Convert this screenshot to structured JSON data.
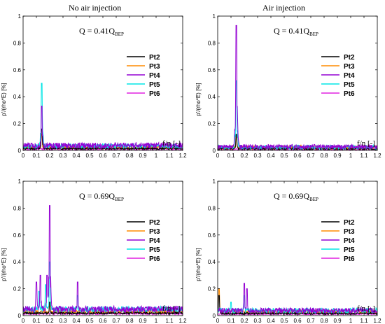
{
  "column_titles": [
    "No air injection",
    "Air injection"
  ],
  "legend_entries": [
    "Pt2",
    "Pt3",
    "Pt4",
    "Pt5",
    "Pt6"
  ],
  "chart_data": [
    {
      "type": "line",
      "panel": "top-left",
      "annotation": {
        "text": "Q = 0.41Q",
        "sub": "BEP"
      },
      "xlabel": "f/n [-]",
      "ylabel": "p'/(rho*E) [%]",
      "xlim": [
        0,
        1.2
      ],
      "ylim": [
        0,
        1.0
      ],
      "xticks": [
        "0",
        "0.1",
        "0.2",
        "0.3",
        "0.4",
        "0.5",
        "0.6",
        "0.7",
        "0.8",
        "0.9",
        "1",
        "1.1",
        "1.2"
      ],
      "yticks": [
        "0",
        "0.2",
        "0.4",
        "0.6",
        "0.8",
        "1"
      ],
      "legend": "right",
      "baseline": 0.03,
      "series": [
        {
          "name": "Pt2",
          "color": "#000000",
          "peaks": [
            [
              0.14,
              0.16
            ]
          ],
          "noise": 0.015,
          "amp": 0.4
        },
        {
          "name": "Pt3",
          "color": "#ff8c00",
          "peaks": [
            [
              0.14,
              0.12
            ]
          ],
          "noise": 0.025,
          "amp": 0.6
        },
        {
          "name": "Pt4",
          "color": "#9400d3",
          "peaks": [
            [
              0.14,
              0.33
            ]
          ],
          "noise": 0.045,
          "amp": 1.0
        },
        {
          "name": "Pt5",
          "color": "#00e5e5",
          "peaks": [
            [
              0.14,
              0.5
            ]
          ],
          "noise": 0.035,
          "amp": 0.9
        },
        {
          "name": "Pt6",
          "color": "#e020e0",
          "peaks": [],
          "noise": 0.012,
          "amp": 0.3
        }
      ]
    },
    {
      "type": "line",
      "panel": "top-right",
      "annotation": {
        "text": "Q = 0.41Q",
        "sub": "BEP"
      },
      "xlabel": "f/n [-]",
      "ylabel": "p'/(rho*E) [%]",
      "xlim": [
        0,
        1.2
      ],
      "ylim": [
        0,
        1.0
      ],
      "xticks": [
        "0",
        "0.1",
        "0.2",
        "0.3",
        "0.4",
        "0.5",
        "0.6",
        "0.7",
        "0.8",
        "0.9",
        "1",
        "1.1",
        "1.2"
      ],
      "yticks": [
        "0",
        "0.2",
        "0.4",
        "0.6",
        "0.8",
        "1"
      ],
      "legend": "right",
      "baseline": 0.025,
      "series": [
        {
          "name": "Pt2",
          "color": "#000000",
          "peaks": [
            [
              0.14,
              0.12
            ]
          ],
          "noise": 0.012,
          "amp": 0.4
        },
        {
          "name": "Pt3",
          "color": "#ff8c00",
          "peaks": [
            [
              0.14,
              0.1
            ]
          ],
          "noise": 0.03,
          "amp": 0.7
        },
        {
          "name": "Pt4",
          "color": "#9400d3",
          "peaks": [
            [
              0.14,
              0.93
            ]
          ],
          "noise": 0.035,
          "amp": 0.9
        },
        {
          "name": "Pt5",
          "color": "#00e5e5",
          "peaks": [
            [
              0.14,
              0.52
            ]
          ],
          "noise": 0.03,
          "amp": 0.8
        },
        {
          "name": "Pt6",
          "color": "#e020e0",
          "peaks": [],
          "noise": 0.01,
          "amp": 0.3
        }
      ]
    },
    {
      "type": "line",
      "panel": "bottom-left",
      "annotation": {
        "text": "Q = 0.69Q",
        "sub": "BEP"
      },
      "xlabel": "f/n [-]",
      "ylabel": "p'/(rho*E) [%]",
      "xlim": [
        0,
        1.2
      ],
      "ylim": [
        0,
        1.0
      ],
      "xticks": [
        "0",
        "0.1",
        "0.2",
        "0.3",
        "0.4",
        "0.5",
        "0.6",
        "0.7",
        "0.8",
        "0.9",
        "1",
        "1.1",
        "1.2"
      ],
      "yticks": [
        "0",
        "0.2",
        "0.4",
        "0.6",
        "0.8",
        "1"
      ],
      "legend": "right",
      "baseline": 0.04,
      "series": [
        {
          "name": "Pt2",
          "color": "#000000",
          "peaks": [
            [
              0.2,
              0.1
            ]
          ],
          "noise": 0.015,
          "amp": 0.4
        },
        {
          "name": "Pt3",
          "color": "#ff8c00",
          "peaks": [
            [
              0.2,
              0.1
            ]
          ],
          "noise": 0.025,
          "amp": 0.6
        },
        {
          "name": "Pt4",
          "color": "#9400d3",
          "peaks": [
            [
              0.1,
              0.25
            ],
            [
              0.13,
              0.3
            ],
            [
              0.18,
              0.3
            ],
            [
              0.2,
              0.82
            ],
            [
              0.41,
              0.25
            ]
          ],
          "noise": 0.05,
          "amp": 1.0
        },
        {
          "name": "Pt5",
          "color": "#00e5e5",
          "peaks": [
            [
              0.12,
              0.18
            ],
            [
              0.17,
              0.23
            ],
            [
              0.2,
              0.4
            ],
            [
              0.41,
              0.15
            ]
          ],
          "noise": 0.045,
          "amp": 1.0
        },
        {
          "name": "Pt6",
          "color": "#e020e0",
          "peaks": [],
          "noise": 0.012,
          "amp": 0.3
        }
      ]
    },
    {
      "type": "line",
      "panel": "bottom-right",
      "annotation": {
        "text": "Q = 0.69Q",
        "sub": "BEP"
      },
      "xlabel": "f/n [-]",
      "ylabel": "p'/(rho*E) [%]",
      "xlim": [
        0,
        1.2
      ],
      "ylim": [
        0,
        1.0
      ],
      "xticks": [
        "0",
        "0.1",
        "0.2",
        "0.3",
        "0.4",
        "0.5",
        "0.6",
        "0.7",
        "0.8",
        "0.9",
        "1",
        "1.1",
        "1.2"
      ],
      "yticks": [
        "0",
        "0.2",
        "0.4",
        "0.6",
        "0.8",
        "1"
      ],
      "legend": "right",
      "baseline": 0.035,
      "series": [
        {
          "name": "Pt2",
          "color": "#000000",
          "peaks": [
            [
              0.01,
              0.15
            ]
          ],
          "noise": 0.015,
          "amp": 0.4
        },
        {
          "name": "Pt3",
          "color": "#ff8c00",
          "peaks": [
            [
              0.01,
              0.2
            ]
          ],
          "noise": 0.03,
          "amp": 0.7
        },
        {
          "name": "Pt4",
          "color": "#9400d3",
          "peaks": [
            [
              0.2,
              0.24
            ],
            [
              0.22,
              0.2
            ]
          ],
          "noise": 0.04,
          "amp": 0.9
        },
        {
          "name": "Pt5",
          "color": "#00e5e5",
          "peaks": [
            [
              0.1,
              0.1
            ],
            [
              0.2,
              0.15
            ]
          ],
          "noise": 0.04,
          "amp": 0.9
        },
        {
          "name": "Pt6",
          "color": "#e020e0",
          "peaks": [],
          "noise": 0.01,
          "amp": 0.3
        }
      ]
    }
  ]
}
